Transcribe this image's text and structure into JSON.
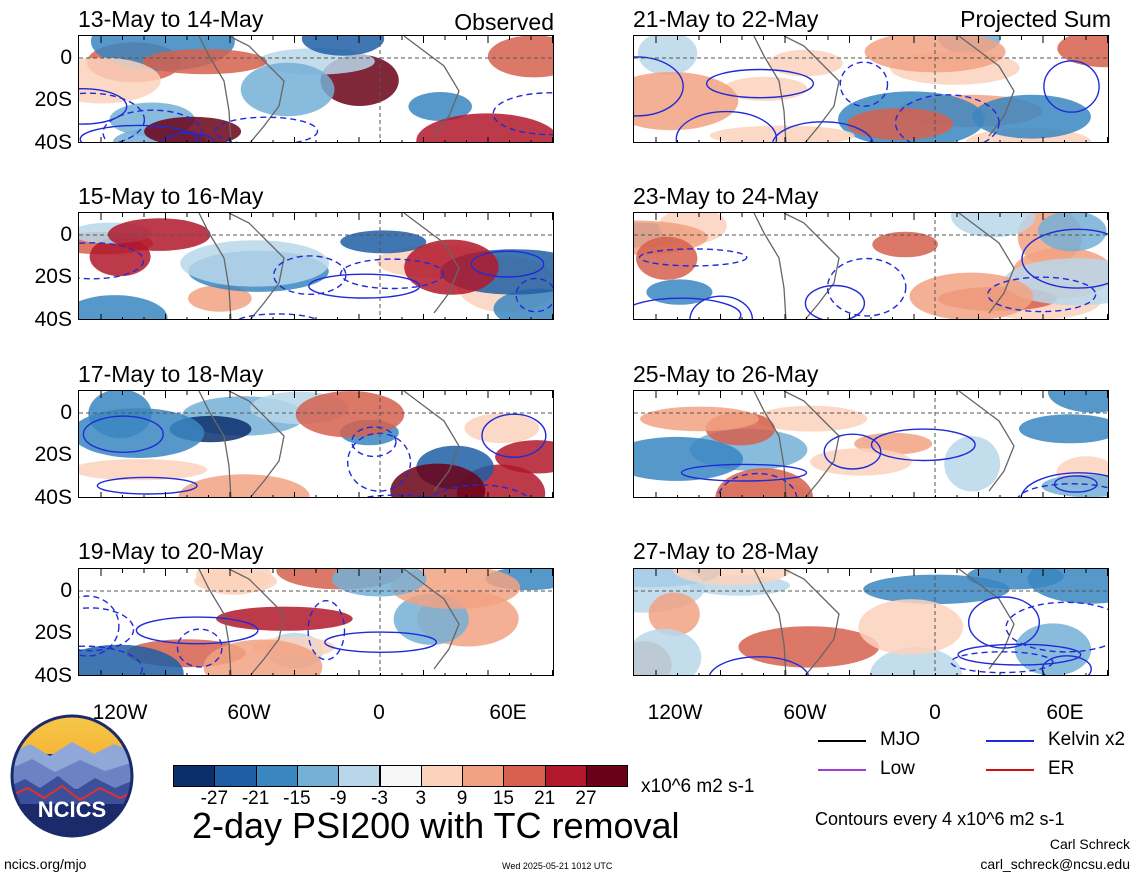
{
  "left_header": "Observed",
  "right_header": "Projected Sum",
  "panels_left": [
    {
      "title": "13-May to 14-May"
    },
    {
      "title": "15-May to 16-May"
    },
    {
      "title": "17-May to 18-May"
    },
    {
      "title": "19-May to 20-May"
    }
  ],
  "panels_right": [
    {
      "title": "21-May to 22-May"
    },
    {
      "title": "23-May to 24-May"
    },
    {
      "title": "25-May to 26-May"
    },
    {
      "title": "27-May to 28-May"
    }
  ],
  "y_ticks": [
    "0",
    "20S",
    "40S"
  ],
  "x_ticks": [
    "120W",
    "60W",
    "0",
    "60E"
  ],
  "colorbar": {
    "labels": [
      "-27",
      "-21",
      "-15",
      "-9",
      "-3",
      "3",
      "9",
      "15",
      "21",
      "27"
    ],
    "units": "x10^6 m2 s-1",
    "colors": [
      "#0b2f6b",
      "#1f5ea3",
      "#3a86c1",
      "#74afd6",
      "#b8d7ea",
      "#f7f7f7",
      "#fbd2bc",
      "#f2a283",
      "#d6604d",
      "#b1182b",
      "#6b0117"
    ]
  },
  "legend": [
    {
      "label": "MJO",
      "color": "#000000"
    },
    {
      "label": "Kelvin x2",
      "color": "#1f2bd8"
    },
    {
      "label": "Low",
      "color": "#a040d0"
    },
    {
      "label": "ER",
      "color": "#d01010"
    }
  ],
  "main_title": "2-day PSI200 with TC removal",
  "contour_note": "Contours every 4 x10^6 m2 s-1",
  "author": "Carl Schreck",
  "email": "carl_schreck@ncsu.edu",
  "site": "ncics.org/mjo",
  "timestamp": "Wed 2025-05-21 1012 UTC",
  "logo_text": "NCICS",
  "chart_data": {
    "type": "heatmap",
    "title": "2-day PSI200 with TC removal",
    "units": "x10^6 m2 s-1",
    "contour_interval": 4,
    "color_levels": [
      -27,
      -21,
      -15,
      -9,
      -3,
      3,
      9,
      15,
      21,
      27
    ],
    "x_axis_ticks": [
      "120W",
      "60W",
      "0",
      "60E"
    ],
    "y_axis_ticks": [
      "0",
      "20S",
      "40S"
    ],
    "lat_range": [
      -40,
      10
    ],
    "lon_range": [
      -150,
      75
    ],
    "series": [
      {
        "name": "MJO",
        "color": "#000000"
      },
      {
        "name": "Kelvin x2",
        "color": "#1f2bd8"
      },
      {
        "name": "Low",
        "color": "#a040d0"
      },
      {
        "name": "ER",
        "color": "#d01010"
      }
    ],
    "panels": [
      {
        "period": "13-May to 14-May",
        "group": "Observed"
      },
      {
        "period": "15-May to 16-May",
        "group": "Observed"
      },
      {
        "period": "17-May to 18-May",
        "group": "Observed"
      },
      {
        "period": "19-May to 20-May",
        "group": "Observed"
      },
      {
        "period": "21-May to 22-May",
        "group": "Projected Sum"
      },
      {
        "period": "23-May to 24-May",
        "group": "Projected Sum"
      },
      {
        "period": "25-May to 26-May",
        "group": "Projected Sum"
      },
      {
        "period": "27-May to 28-May",
        "group": "Projected Sum"
      }
    ]
  }
}
